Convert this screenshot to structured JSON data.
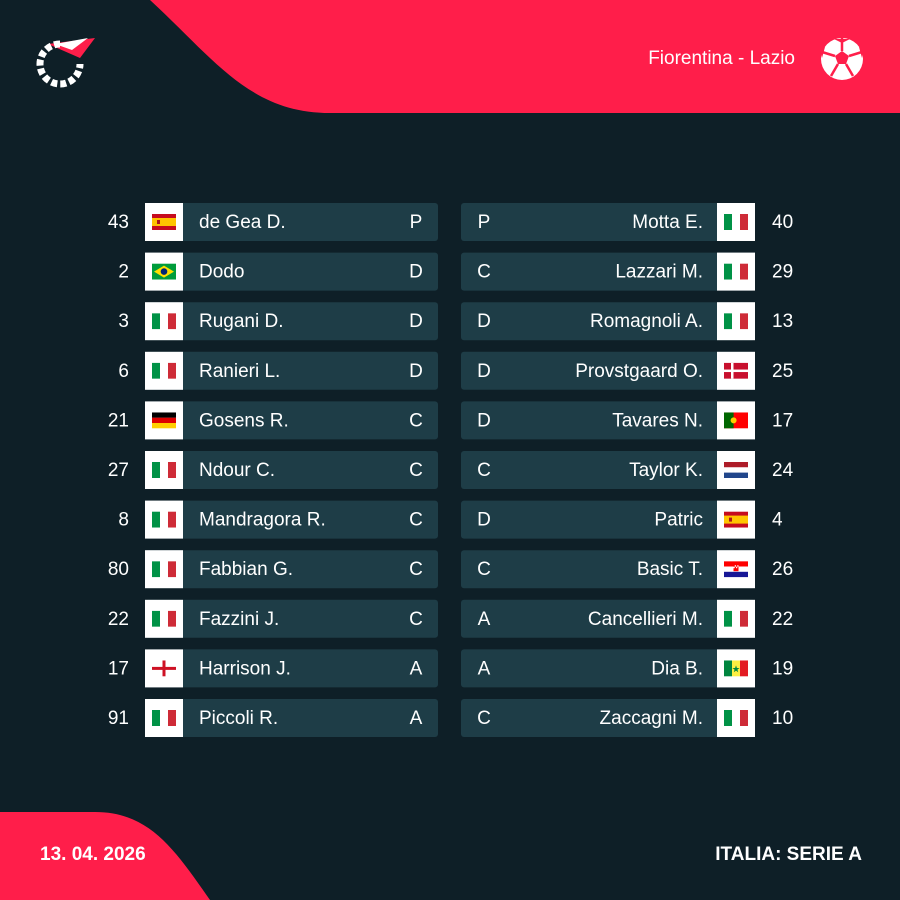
{
  "header": {
    "match": "Fiorentina - Lazio"
  },
  "home": [
    {
      "number": 43,
      "name": "de Gea D.",
      "position": "P"
    },
    {
      "number": 2,
      "name": "Dodo",
      "position": "D"
    },
    {
      "number": 3,
      "name": "Rugani D.",
      "position": "D"
    },
    {
      "number": 6,
      "name": "Ranieri L.",
      "position": "D"
    },
    {
      "number": 21,
      "name": "Gosens R.",
      "position": "C"
    },
    {
      "number": 27,
      "name": "Ndour C.",
      "position": "C"
    },
    {
      "number": 8,
      "name": "Mandragora R.",
      "position": "C"
    },
    {
      "number": 80,
      "name": "Fabbian G.",
      "position": "C"
    },
    {
      "number": 22,
      "name": "Fazzini J.",
      "position": "C"
    },
    {
      "number": 17,
      "name": "Harrison J.",
      "position": "A"
    },
    {
      "number": 91,
      "name": "Piccoli R.",
      "position": "A"
    }
  ],
  "away": [
    {
      "number": 40,
      "name": "Motta E.",
      "position": "P"
    },
    {
      "number": 29,
      "name": "Lazzari M.",
      "position": "C"
    },
    {
      "number": 13,
      "name": "Romagnoli A.",
      "position": "D"
    },
    {
      "number": 25,
      "name": "Provstgaard O.",
      "position": "D"
    },
    {
      "number": 17,
      "name": "Tavares N.",
      "position": "D"
    },
    {
      "number": 24,
      "name": "Taylor K.",
      "position": "C"
    },
    {
      "number": 4,
      "name": "Patric",
      "position": "D"
    },
    {
      "number": 26,
      "name": "Basic T.",
      "position": "C"
    },
    {
      "number": 22,
      "name": "Cancellieri M.",
      "position": "A"
    },
    {
      "number": 19,
      "name": "Dia B.",
      "position": "A"
    },
    {
      "number": 10,
      "name": "Zaccagni M.",
      "position": "C"
    }
  ],
  "footer": {
    "date": "13. 04. 2026",
    "league": "ITALIA: SERIE A"
  }
}
